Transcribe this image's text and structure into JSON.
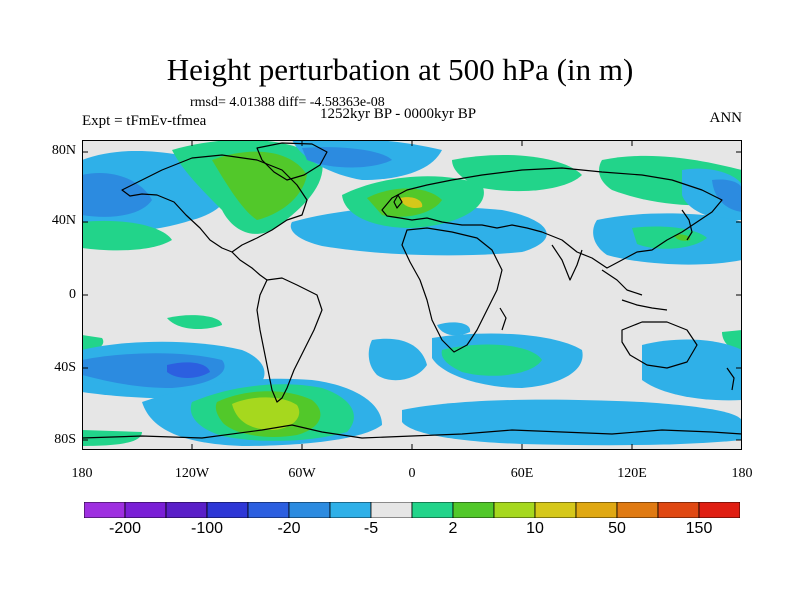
{
  "title": "Height perturbation at 500 hPa (in m)",
  "stats": "rmsd= 4.01388 diff= -4.58363e-08",
  "period": "1252kyr BP - 0000kyr BP",
  "experiment": "Expt = tFmEv-tfmea",
  "season": "ANN",
  "lat_labels": [
    "80N",
    "40N",
    "0",
    "40S",
    "80S"
  ],
  "lon_labels": [
    "180",
    "120W",
    "60W",
    "0",
    "60E",
    "120E",
    "180"
  ],
  "colorbar": {
    "colors": [
      "#9e2fe0",
      "#7a1fd6",
      "#5a1fc8",
      "#2e37d6",
      "#2c5fe0",
      "#2c8be0",
      "#2fb0e8",
      "#e6e6e6",
      "#22d48a",
      "#52c82a",
      "#a6d81e",
      "#d6c81a",
      "#e0a812",
      "#e07a12",
      "#e04812",
      "#e01e12"
    ],
    "tick_labels": [
      "-200",
      "-100",
      "-20",
      "-5",
      "2",
      "10",
      "50",
      "150"
    ]
  },
  "palette": {
    "bg": "#e6e6e6",
    "lightblue": "#2fb0e8",
    "blue": "#2c8be0",
    "darkblue": "#2c5fe0",
    "teal": "#22d48a",
    "green": "#52c82a",
    "yellowgreen": "#a6d81e",
    "yellow": "#d6c81a"
  }
}
